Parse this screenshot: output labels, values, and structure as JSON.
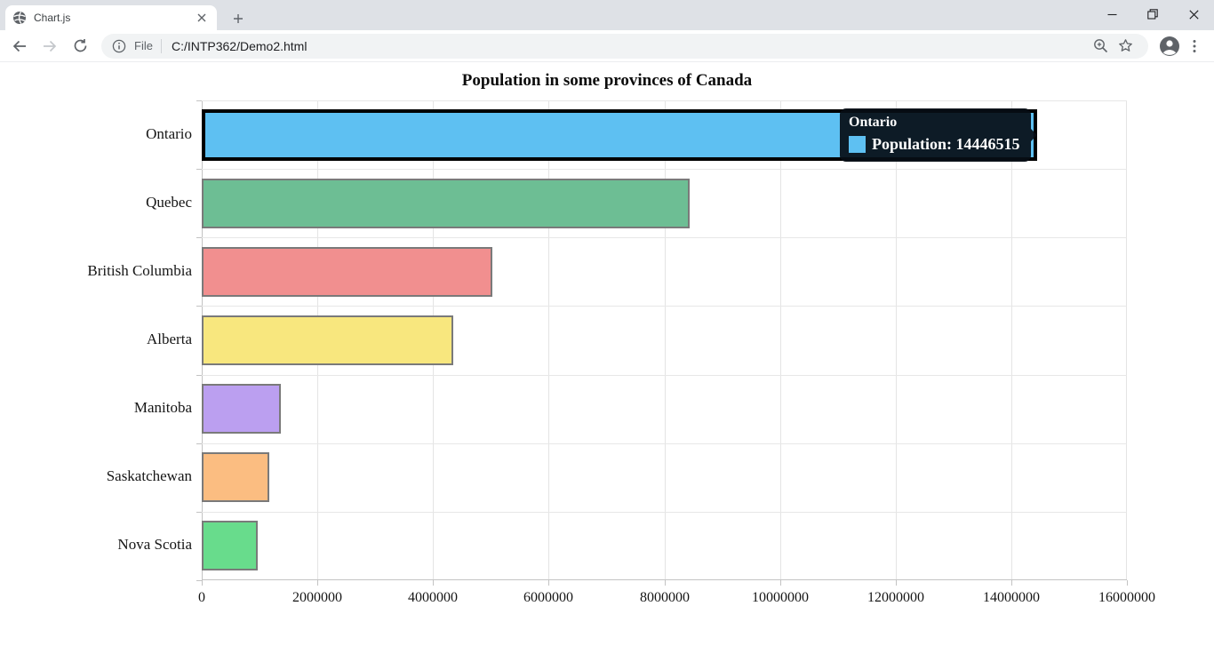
{
  "browser": {
    "tab_title": "Chart.js",
    "url_scheme_label": "File",
    "url": "C:/INTP362/Demo2.html",
    "icons": {
      "favicon": "globe-icon",
      "tab_close": "close-icon",
      "new_tab": "plus-icon",
      "window": [
        "minimize-icon",
        "restore-icon",
        "close-icon"
      ],
      "nav": [
        "back-arrow-icon",
        "forward-arrow-icon",
        "reload-icon"
      ],
      "omnibox_left": "info-icon",
      "omnibox_right": [
        "zoom-in-icon",
        "bookmark-star-icon"
      ],
      "profile": "avatar-icon",
      "menu": "three-dot-menu-icon"
    }
  },
  "chart_data": {
    "type": "bar",
    "orientation": "horizontal",
    "title": "Population in some provinces of Canada",
    "series_name": "Population",
    "categories": [
      "Ontario",
      "Quebec",
      "British Columbia",
      "Alberta",
      "Manitoba",
      "Saskatchewan",
      "Nova Scotia"
    ],
    "values": [
      14446515,
      8433301,
      5020302,
      4345737,
      1360396,
      1168423,
      964693
    ],
    "bar_colors": [
      "#5ec0f2",
      "#6dbe94",
      "#f18f8f",
      "#f8e77e",
      "#bb9ff0",
      "#fbbd81",
      "#68dc8c"
    ],
    "bar_border_color": "#7a7a7a",
    "highlight": {
      "index": 0,
      "border_color": "#000000",
      "border_width": 4
    },
    "xlim": [
      0,
      16000000
    ],
    "x_tick_step": 2000000,
    "x_tick_labels": [
      "0",
      "2000000",
      "4000000",
      "6000000",
      "8000000",
      "10000000",
      "12000000",
      "14000000",
      "16000000"
    ],
    "grid": true,
    "legend": "none"
  },
  "tooltip": {
    "title": "Ontario",
    "label": "Population: 14446515",
    "color_box": "#5ec0f2"
  }
}
